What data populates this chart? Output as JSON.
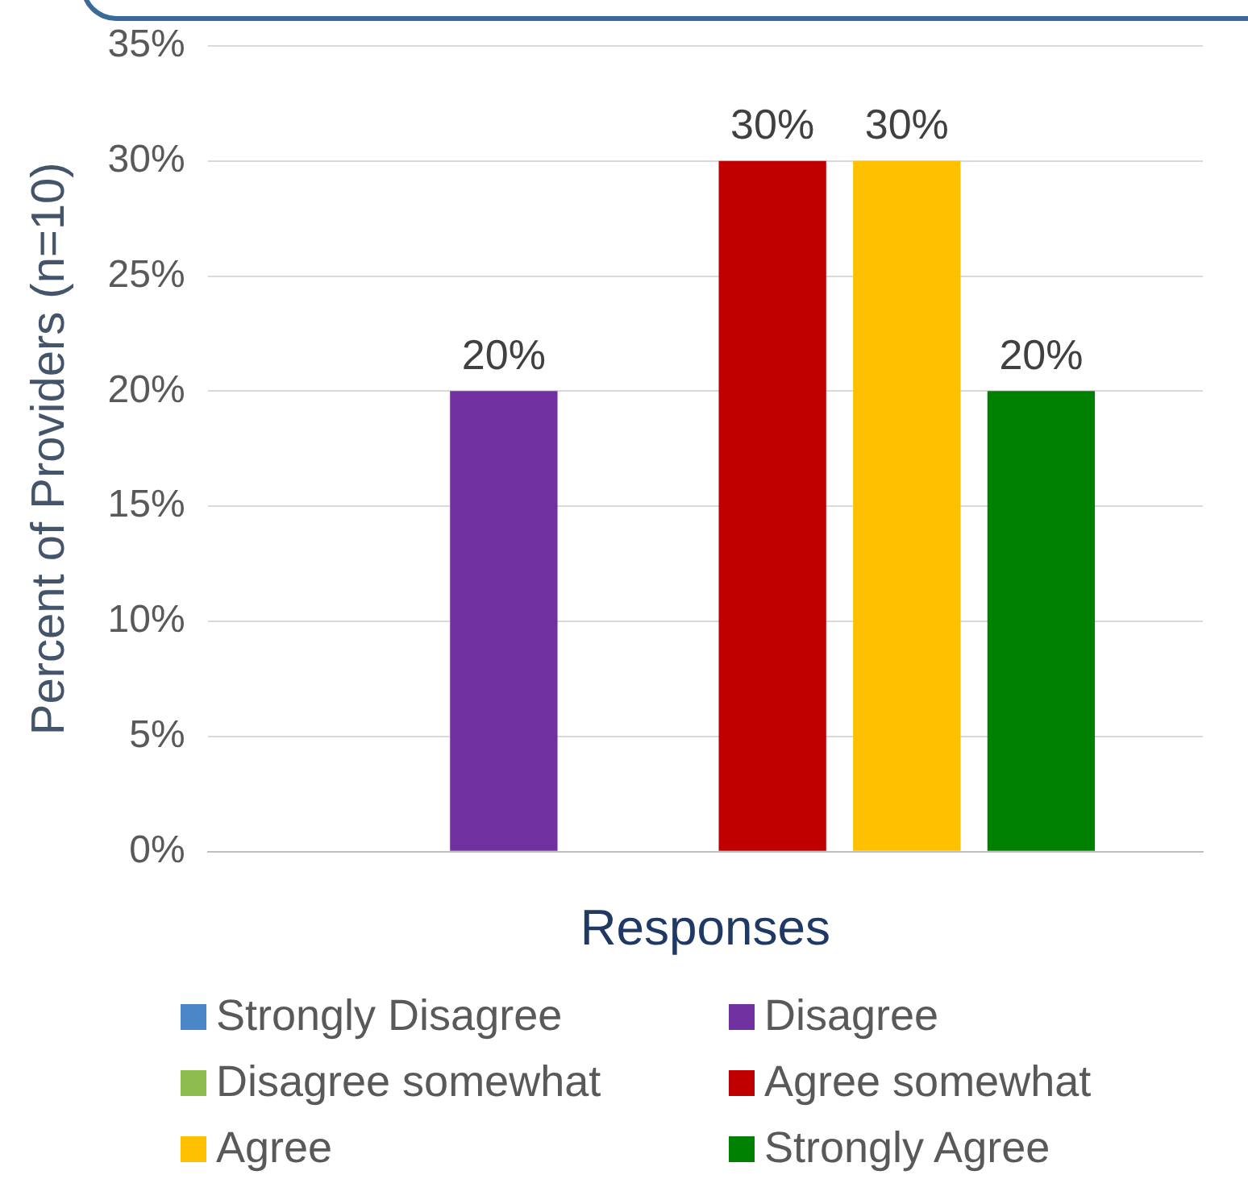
{
  "chart_data": {
    "type": "bar",
    "xlabel": "Responses",
    "ylabel": "Percent of Providers (n=10)",
    "categories": [
      null
    ],
    "series": [
      {
        "name": "Strongly Disagree",
        "color": "#4a86c8",
        "values": [
          0
        ],
        "value_labels": [
          null
        ]
      },
      {
        "name": "Disagree",
        "color": "#7030a0",
        "values": [
          20
        ],
        "value_labels": [
          "20%"
        ]
      },
      {
        "name": "Disagree somewhat",
        "color": "#8fbc4f",
        "values": [
          0
        ],
        "value_labels": [
          null
        ]
      },
      {
        "name": "Agree somewhat",
        "color": "#c00000",
        "values": [
          30
        ],
        "value_labels": [
          "30%"
        ]
      },
      {
        "name": "Agree",
        "color": "#ffc000",
        "values": [
          30
        ],
        "value_labels": [
          "30%"
        ]
      },
      {
        "name": "Strongly Agree",
        "color": "#008000",
        "values": [
          20
        ],
        "value_labels": [
          "20%"
        ]
      }
    ],
    "ylim": [
      0,
      35
    ],
    "yticks": [
      {
        "value": 0,
        "label": "0%"
      },
      {
        "value": 5,
        "label": "5%"
      },
      {
        "value": 10,
        "label": "10%"
      },
      {
        "value": 15,
        "label": "15%"
      },
      {
        "value": 20,
        "label": "20%"
      },
      {
        "value": 25,
        "label": "25%"
      },
      {
        "value": 30,
        "label": "30%"
      },
      {
        "value": 35,
        "label": "35%"
      }
    ],
    "grid": "y",
    "legend": "bottom"
  }
}
